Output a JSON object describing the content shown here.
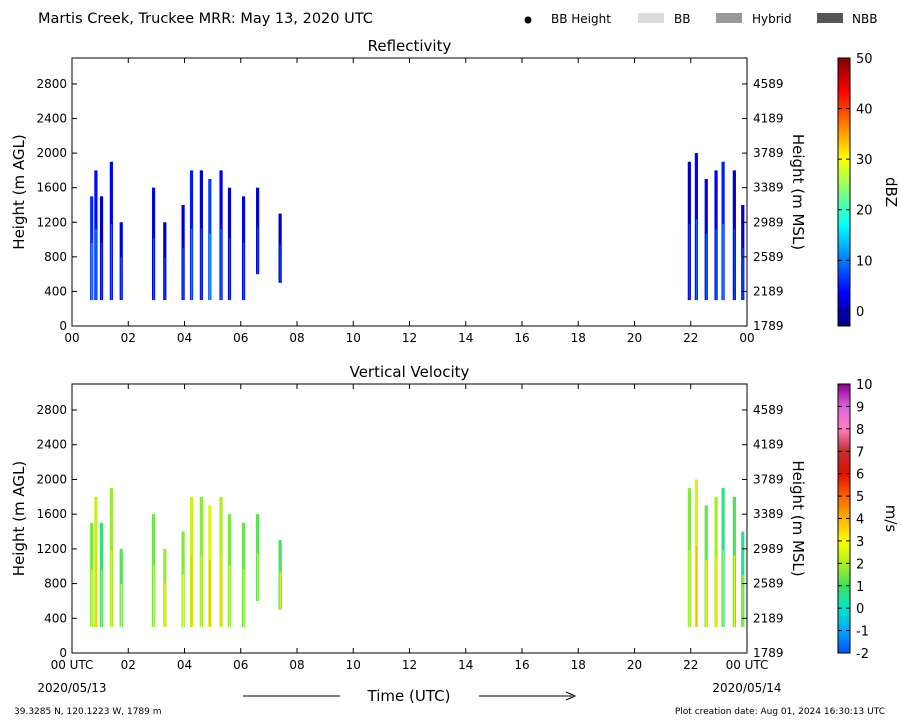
{
  "header": {
    "title": "Martis Creek, Truckee MRR:  May 13, 2020 UTC",
    "legend": [
      {
        "label": "BB Height",
        "kind": "dot",
        "color": "#000000"
      },
      {
        "label": "BB",
        "kind": "box",
        "color": "#dcdcdc"
      },
      {
        "label": "Hybrid",
        "kind": "box",
        "color": "#999999"
      },
      {
        "label": "NBB",
        "kind": "box",
        "color": "#555555"
      }
    ]
  },
  "footer": {
    "location": "39.3285 N, 120.1223 W, 1789 m",
    "creation": "Plot creation date: Aug 01, 2024 16:30:13 UTC",
    "xlabel": "Time (UTC)",
    "date_start": "2020/05/13",
    "date_end": "2020/05/14"
  },
  "chart_data": [
    {
      "type": "heatmap",
      "title": "Reflectivity",
      "ylabel": "Height (m AGL)",
      "ylabel_right": "Height (m MSL)",
      "xlim": [
        0,
        24
      ],
      "ylim": [
        0,
        3100
      ],
      "x_ticks": [
        "00",
        "02",
        "04",
        "06",
        "08",
        "10",
        "12",
        "14",
        "16",
        "18",
        "20",
        "22",
        "00"
      ],
      "y_ticks": [
        0,
        400,
        800,
        1200,
        1600,
        2000,
        2400,
        2800
      ],
      "y_ticks_right": [
        "1789",
        "2189",
        "2589",
        "2989",
        "3389",
        "3789",
        "4189",
        "4589"
      ],
      "colorbar": {
        "label": "dBZ",
        "range": [
          -3,
          50
        ],
        "ticks": [
          0,
          10,
          20,
          30,
          40,
          50
        ],
        "stops": [
          "#00007f",
          "#0000ff",
          "#007fff",
          "#00ffff",
          "#7fff7f",
          "#ffff00",
          "#ff7f00",
          "#ff0000",
          "#7f0000"
        ]
      },
      "segments": [
        {
          "t": 0.7,
          "bottom": 300,
          "top": 1500,
          "value": 6
        },
        {
          "t": 0.85,
          "bottom": 300,
          "top": 1800,
          "value": 4
        },
        {
          "t": 1.05,
          "bottom": 300,
          "top": 1500,
          "value": 1
        },
        {
          "t": 1.4,
          "bottom": 300,
          "top": 1900,
          "value": 3
        },
        {
          "t": 1.75,
          "bottom": 300,
          "top": 1200,
          "value": 2
        },
        {
          "t": 2.9,
          "bottom": 300,
          "top": 1600,
          "value": 2
        },
        {
          "t": 3.3,
          "bottom": 300,
          "top": 1200,
          "value": 0
        },
        {
          "t": 3.95,
          "bottom": 300,
          "top": 1400,
          "value": 1
        },
        {
          "t": 4.25,
          "bottom": 300,
          "top": 1800,
          "value": 5
        },
        {
          "t": 4.6,
          "bottom": 300,
          "top": 1800,
          "value": 2
        },
        {
          "t": 4.9,
          "bottom": 300,
          "top": 1700,
          "value": 7
        },
        {
          "t": 5.3,
          "bottom": 300,
          "top": 1800,
          "value": 3
        },
        {
          "t": 5.6,
          "bottom": 300,
          "top": 1600,
          "value": 1
        },
        {
          "t": 6.1,
          "bottom": 300,
          "top": 1500,
          "value": 2
        },
        {
          "t": 6.6,
          "bottom": 600,
          "top": 1600,
          "value": 1
        },
        {
          "t": 7.4,
          "bottom": 500,
          "top": 1300,
          "value": 0
        },
        {
          "t": 21.95,
          "bottom": 300,
          "top": 1900,
          "value": 1
        },
        {
          "t": 22.2,
          "bottom": 300,
          "top": 2000,
          "value": 3
        },
        {
          "t": 22.55,
          "bottom": 300,
          "top": 1700,
          "value": 2
        },
        {
          "t": 22.9,
          "bottom": 300,
          "top": 1800,
          "value": 2
        },
        {
          "t": 23.15,
          "bottom": 300,
          "top": 1900,
          "value": 5
        },
        {
          "t": 23.55,
          "bottom": 300,
          "top": 1800,
          "value": 1
        },
        {
          "t": 23.85,
          "bottom": 300,
          "top": 1400,
          "value": 1
        }
      ]
    },
    {
      "type": "heatmap",
      "title": "Vertical Velocity",
      "ylabel": "Height (m AGL)",
      "ylabel_right": "Height (m MSL)",
      "xlim": [
        0,
        24
      ],
      "ylim": [
        0,
        3100
      ],
      "x_ticks": [
        "00 UTC",
        "02",
        "04",
        "06",
        "08",
        "10",
        "12",
        "14",
        "16",
        "18",
        "20",
        "22",
        "00 UTC"
      ],
      "y_ticks": [
        0,
        400,
        800,
        1200,
        1600,
        2000,
        2400,
        2800
      ],
      "y_ticks_right": [
        "1789",
        "2189",
        "2589",
        "2989",
        "3389",
        "3789",
        "4189",
        "4589"
      ],
      "colorbar": {
        "label": "m/s",
        "range": [
          -2,
          10
        ],
        "ticks": [
          -2,
          -1,
          0,
          1,
          2,
          3,
          4,
          5,
          6,
          7,
          8,
          9,
          10
        ],
        "stops": [
          "#0050ff",
          "#00a8ff",
          "#00e5c8",
          "#40e060",
          "#b0f020",
          "#ffff00",
          "#ffb000",
          "#ff6000",
          "#e01000",
          "#c03030",
          "#ff80c0",
          "#e060e0",
          "#900090"
        ]
      },
      "segments": [
        {
          "t": 0.7,
          "bottom": 300,
          "top": 1500,
          "value": 1.5
        },
        {
          "t": 0.85,
          "bottom": 300,
          "top": 1800,
          "value": 2.2
        },
        {
          "t": 1.05,
          "bottom": 300,
          "top": 1500,
          "value": 0.8
        },
        {
          "t": 1.4,
          "bottom": 300,
          "top": 1900,
          "value": 1.8
        },
        {
          "t": 1.75,
          "bottom": 300,
          "top": 1200,
          "value": 1.2
        },
        {
          "t": 2.9,
          "bottom": 300,
          "top": 1600,
          "value": 1.4
        },
        {
          "t": 3.3,
          "bottom": 300,
          "top": 1200,
          "value": 1.8
        },
        {
          "t": 3.95,
          "bottom": 300,
          "top": 1400,
          "value": 1.6
        },
        {
          "t": 4.25,
          "bottom": 300,
          "top": 1800,
          "value": 2.3
        },
        {
          "t": 4.6,
          "bottom": 300,
          "top": 1800,
          "value": 1.7
        },
        {
          "t": 4.9,
          "bottom": 300,
          "top": 1700,
          "value": 2.5
        },
        {
          "t": 5.3,
          "bottom": 300,
          "top": 1800,
          "value": 2.0
        },
        {
          "t": 5.6,
          "bottom": 300,
          "top": 1600,
          "value": 1.5
        },
        {
          "t": 6.1,
          "bottom": 300,
          "top": 1500,
          "value": 1.3
        },
        {
          "t": 6.6,
          "bottom": 600,
          "top": 1600,
          "value": 1.2
        },
        {
          "t": 7.4,
          "bottom": 500,
          "top": 1300,
          "value": 1.0
        },
        {
          "t": 21.95,
          "bottom": 300,
          "top": 1900,
          "value": 1.6
        },
        {
          "t": 22.2,
          "bottom": 300,
          "top": 2000,
          "value": 2.4
        },
        {
          "t": 22.55,
          "bottom": 300,
          "top": 1700,
          "value": 1.3
        },
        {
          "t": 22.9,
          "bottom": 300,
          "top": 1800,
          "value": 1.9
        },
        {
          "t": 23.15,
          "bottom": 300,
          "top": 1900,
          "value": 0.7
        },
        {
          "t": 23.55,
          "bottom": 300,
          "top": 1800,
          "value": 1.1
        },
        {
          "t": 23.85,
          "bottom": 300,
          "top": 1400,
          "value": 0.5
        }
      ]
    }
  ]
}
